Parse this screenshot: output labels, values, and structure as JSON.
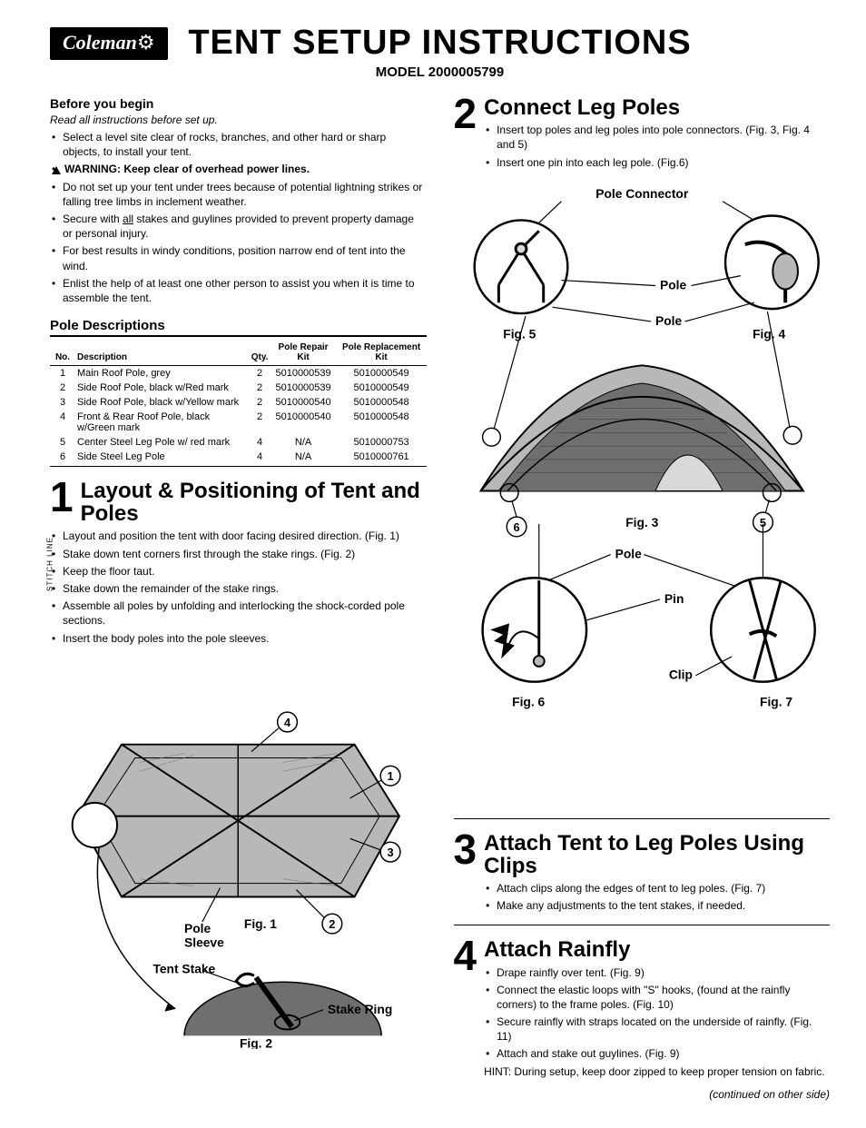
{
  "brand": "Coleman",
  "stitch_line": "STITCH LINE",
  "title": "TENT SETUP INSTRUCTIONS",
  "model_label": "MODEL 2000005799",
  "before": {
    "heading": "Before you begin",
    "read_all": "Read all instructions before set up.",
    "warning": "WARNING: Keep clear of overhead power lines.",
    "bullets_pre": "Select a level site clear of rocks, branches, and other hard or sharp objects, to install your tent.",
    "bullets": [
      "Do not set up your tent under trees because of potential lightning strikes or falling tree limbs in inclement weather.",
      "Secure with all stakes and guylines provided to prevent property damage or personal injury.",
      "For best results in windy conditions, position narrow end of tent into the wind.",
      "Enlist the help of at least one other person to assist you when it is time to assemble the tent."
    ]
  },
  "pole_descriptions": {
    "title": "Pole Descriptions",
    "columns": [
      "No.",
      "Description",
      "Qty.",
      "Pole Repair Kit",
      "Pole Replacement Kit"
    ],
    "rows": [
      [
        "1",
        "Main Roof Pole, grey",
        "2",
        "5010000539",
        "5010000549"
      ],
      [
        "2",
        "Side Roof Pole, black w/Red mark",
        "2",
        "5010000539",
        "5010000549"
      ],
      [
        "3",
        "Side Roof Pole, black w/Yellow mark",
        "2",
        "5010000540",
        "5010000548"
      ],
      [
        "4",
        "Front & Rear Roof Pole, black w/Green mark",
        "2",
        "5010000540",
        "5010000548"
      ],
      [
        "5",
        "Center Steel Leg Pole w/ red mark",
        "4",
        "N/A",
        "5010000753"
      ],
      [
        "6",
        "Side Steel Leg Pole",
        "4",
        "N/A",
        "5010000761"
      ]
    ]
  },
  "step1": {
    "num": "1",
    "title": "Layout & Positioning of Tent and Poles",
    "bullets": [
      "Layout and position the tent with door facing desired direction. (Fig. 1)",
      "Stake down tent corners first through the stake rings. (Fig. 2)",
      "Keep the floor taut.",
      "Stake down the remainder of the stake rings.",
      "Assemble all poles by unfolding and interlocking the shock-corded pole sections.",
      "Insert the body poles into the pole sleeves."
    ],
    "labels": {
      "pole_sleeve": "Pole Sleeve",
      "tent_stake": "Tent Stake",
      "stake_ring": "Stake Ring",
      "fig1": "Fig. 1",
      "fig2": "Fig. 2"
    },
    "callouts": [
      "1",
      "2",
      "3",
      "4"
    ]
  },
  "step2": {
    "num": "2",
    "title": "Connect Leg Poles",
    "bullets": [
      "Insert top poles and leg poles into pole connectors. (Fig. 3, Fig. 4 and 5)",
      "Insert one pin into each leg pole. (Fig.6)"
    ],
    "labels": {
      "pole_connector": "Pole Connector",
      "pole": "Pole",
      "pin": "Pin",
      "clip": "Clip",
      "fig3": "Fig. 3",
      "fig4": "Fig. 4",
      "fig5": "Fig. 5",
      "fig6": "Fig. 6",
      "fig7": "Fig. 7"
    },
    "callouts": [
      "5",
      "6"
    ]
  },
  "step3": {
    "num": "3",
    "title": "Attach Tent to Leg Poles Using Clips",
    "bullets": [
      "Attach clips along the edges of tent to leg poles. (Fig. 7)",
      "Make any adjustments to the tent stakes, if needed."
    ]
  },
  "step4": {
    "num": "4",
    "title": "Attach Rainfly",
    "bullets": [
      "Drape rainfly over tent. (Fig. 9)",
      "Connect the elastic loops with \"S\" hooks, (found at the rainfly corners) to the frame poles. (Fig. 10)",
      "Secure rainfly with straps located on the underside of rainfly. (Fig. 11)",
      "Attach and stake out guylines. (Fig. 9)"
    ],
    "hint": "HINT: During setup, keep door zipped to keep proper tension on fabric."
  },
  "continued": "(continued on other side)",
  "colors": {
    "tent_fill": "#b8b8b8",
    "tent_dark": "#6f6f6f",
    "black": "#000000",
    "white": "#ffffff",
    "grey_light": "#d9d9d9"
  }
}
